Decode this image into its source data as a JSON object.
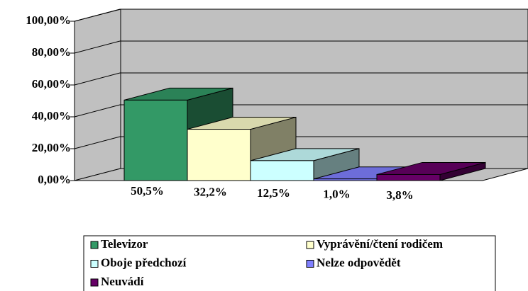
{
  "chart_data": {
    "type": "bar3d",
    "categories": [
      "Televizor",
      "Vyprávění/čtení rodičem",
      "Oboje předchozí",
      "Nelze odpovědět",
      "Neuvádí"
    ],
    "values": [
      50.5,
      32.2,
      12.5,
      1.0,
      3.8
    ],
    "value_labels": [
      "50,5%",
      "32,2%",
      "12,5%",
      "1,0%",
      "3,8%"
    ],
    "colors": [
      "#339966",
      "#ffffcc",
      "#ccffff",
      "#8080ff",
      "#660066"
    ],
    "ylim": [
      0,
      100
    ],
    "yticks": [
      {
        "value": 0,
        "label": "0,00%"
      },
      {
        "value": 20,
        "label": "20,00%"
      },
      {
        "value": 40,
        "label": "40,00%"
      },
      {
        "value": 60,
        "label": "60,00%"
      },
      {
        "value": 80,
        "label": "80,00%"
      },
      {
        "value": 100,
        "label": "100,00%"
      }
    ],
    "grid": true
  }
}
